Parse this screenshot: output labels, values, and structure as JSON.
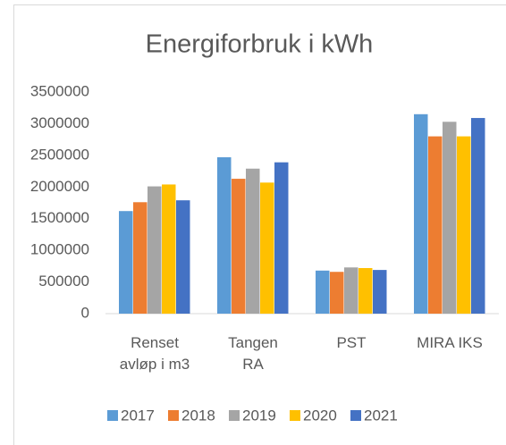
{
  "chart_data": {
    "type": "bar",
    "title": "Energiforbruk i kWh",
    "categories": [
      "Renset avløp i m3",
      "Tangen RA",
      "PST",
      "MIRA IKS"
    ],
    "series": [
      {
        "name": "2017",
        "color": "#5b9bd5",
        "values": [
          1620000,
          2470000,
          680000,
          3150000
        ]
      },
      {
        "name": "2018",
        "color": "#ed7d31",
        "values": [
          1760000,
          2130000,
          660000,
          2800000
        ]
      },
      {
        "name": "2019",
        "color": "#a5a5a5",
        "values": [
          2010000,
          2290000,
          730000,
          3030000
        ]
      },
      {
        "name": "2020",
        "color": "#ffc000",
        "values": [
          2040000,
          2070000,
          720000,
          2800000
        ]
      },
      {
        "name": "2021",
        "color": "#4472c4",
        "values": [
          1790000,
          2390000,
          690000,
          3090000
        ]
      }
    ],
    "ylim": [
      0,
      3500000
    ],
    "yticks": [
      0,
      500000,
      1000000,
      1500000,
      2000000,
      2500000,
      3000000,
      3500000
    ],
    "legend": "bottom"
  }
}
